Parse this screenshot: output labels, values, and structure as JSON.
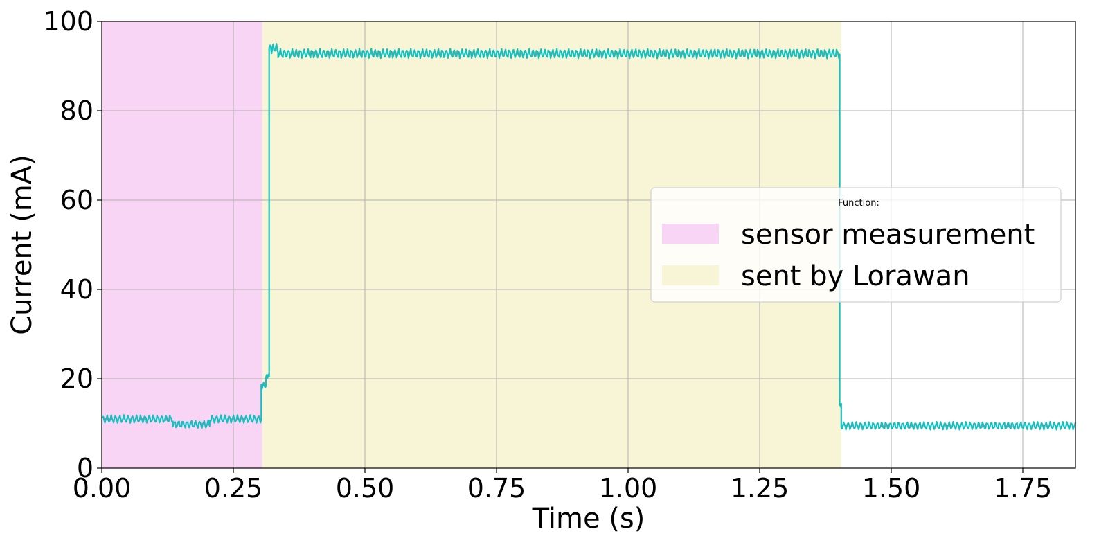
{
  "chart_data": {
    "type": "line",
    "xlabel": "Time (s)",
    "ylabel": "Current (mA)",
    "xlim": [
      0,
      1.85
    ],
    "ylim": [
      0,
      100
    ],
    "x_ticks": [
      "0.00",
      "0.25",
      "0.50",
      "0.75",
      "1.00",
      "1.25",
      "1.50",
      "1.75"
    ],
    "x_tick_values": [
      0,
      0.25,
      0.5,
      0.75,
      1.0,
      1.25,
      1.5,
      1.75
    ],
    "y_ticks": [
      "0",
      "20",
      "40",
      "60",
      "80",
      "100"
    ],
    "y_tick_values": [
      0,
      20,
      40,
      60,
      80,
      100
    ],
    "grid": true,
    "legend": {
      "title": "Function:",
      "placement": "center-right",
      "entries": [
        {
          "label": "sensor measurement",
          "color": "#f8d5f5"
        },
        {
          "label": "sent by Lorawan",
          "color": "#f7f5d6"
        }
      ]
    },
    "shaded_regions": [
      {
        "label": "sensor measurement",
        "x_start": 0.0,
        "x_end": 0.305,
        "color": "#f8d5f5"
      },
      {
        "label": "sent by Lorawan",
        "x_start": 0.305,
        "x_end": 1.405,
        "color": "#f7f5d6"
      }
    ],
    "series": [
      {
        "color": "#17bebf",
        "segments": [
          {
            "x_start": 0.0,
            "x_end": 0.135,
            "mean": 11.0,
            "amplitude": 0.9,
            "period": 0.008
          },
          {
            "x_start": 0.135,
            "x_end": 0.205,
            "mean": 9.8,
            "amplitude": 0.9,
            "period": 0.008
          },
          {
            "x_start": 0.205,
            "x_end": 0.303,
            "mean": 11.0,
            "amplitude": 0.9,
            "period": 0.008
          },
          {
            "x_start": 0.303,
            "x_end": 0.312,
            "mean": 18.5,
            "amplitude": 0.8,
            "period": 0.006
          },
          {
            "x_start": 0.312,
            "x_end": 0.318,
            "mean": 20.5,
            "amplitude": 0.6,
            "period": 0.004
          },
          {
            "x_start": 0.318,
            "x_end": 0.335,
            "mean": 94.0,
            "amplitude": 1.2,
            "period": 0.006
          },
          {
            "x_start": 0.335,
            "x_end": 1.402,
            "mean": 92.8,
            "amplitude": 1.1,
            "period": 0.0075
          },
          {
            "x_start": 1.402,
            "x_end": 1.405,
            "mean": 14.0,
            "amplitude": 0.5,
            "period": 0.003
          },
          {
            "x_start": 1.405,
            "x_end": 1.85,
            "mean": 9.5,
            "amplitude": 0.9,
            "period": 0.008
          }
        ]
      }
    ]
  }
}
